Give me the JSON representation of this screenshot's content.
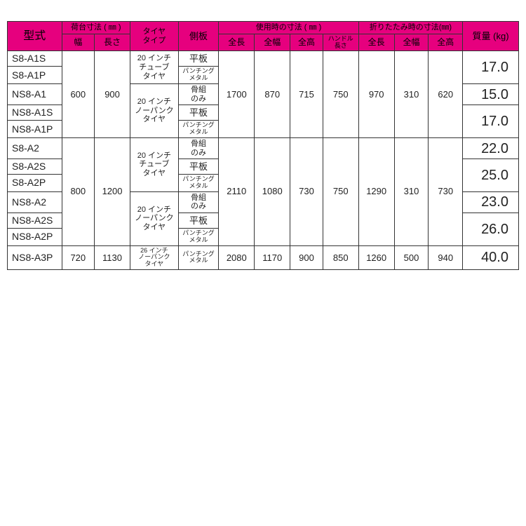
{
  "header": {
    "model": "型式",
    "cargo": "荷台寸法 ( ㎜ )",
    "cargo_w": "幅",
    "cargo_l": "長さ",
    "tire": "タイヤ\nタイプ",
    "side": "側板",
    "use": "使用時の寸法 ( ㎜ )",
    "use_l": "全長",
    "use_w": "全幅",
    "use_h": "全高",
    "use_handle": "ハンドル\n長さ",
    "fold": "折りたたみ時の寸法(㎜)",
    "fold_l": "全長",
    "fold_w": "全幅",
    "fold_h": "全高",
    "mass": "質量 (kg)"
  },
  "tire": {
    "tube20": "20 インチ\nチューブ\nタイヤ",
    "nopunk20": "20 インチ\nノーパンク\nタイヤ",
    "nopunk26": "26 インチ\nノーパンク\nタイヤ"
  },
  "side": {
    "flat": "平板",
    "punch": "パンチング\nメタル",
    "frame": "骨組\nのみ"
  },
  "g1": {
    "models": [
      "S8-A1S",
      "S8-A1P",
      "NS8-A1",
      "NS8-A1S",
      "NS8-A1P"
    ],
    "cargo_w": "600",
    "cargo_l": "900",
    "use_l": "1700",
    "use_w": "870",
    "use_h": "715",
    "use_handle": "750",
    "fold_l": "970",
    "fold_w": "310",
    "fold_h": "620",
    "mass": [
      "17.0",
      "15.0",
      "17.0"
    ]
  },
  "g2": {
    "models": [
      "S8-A2",
      "S8-A2S",
      "S8-A2P",
      "NS8-A2",
      "NS8-A2S",
      "NS8-A2P"
    ],
    "cargo_w": "800",
    "cargo_l": "1200",
    "use_l": "2110",
    "use_w": "1080",
    "use_h": "730",
    "use_handle": "750",
    "fold_l": "1290",
    "fold_w": "310",
    "fold_h": "730",
    "mass": [
      "22.0",
      "25.0",
      "23.0",
      "26.0"
    ]
  },
  "g3": {
    "model": "NS8-A3P",
    "cargo_w": "720",
    "cargo_l": "1130",
    "use_l": "2080",
    "use_w": "1170",
    "use_h": "900",
    "use_handle": "850",
    "fold_l": "1260",
    "fold_w": "500",
    "fold_h": "940",
    "mass": "40.0"
  },
  "colors": {
    "header_bg": "#e6007e",
    "border": "#333333",
    "text": "#222222",
    "bg": "#ffffff"
  }
}
